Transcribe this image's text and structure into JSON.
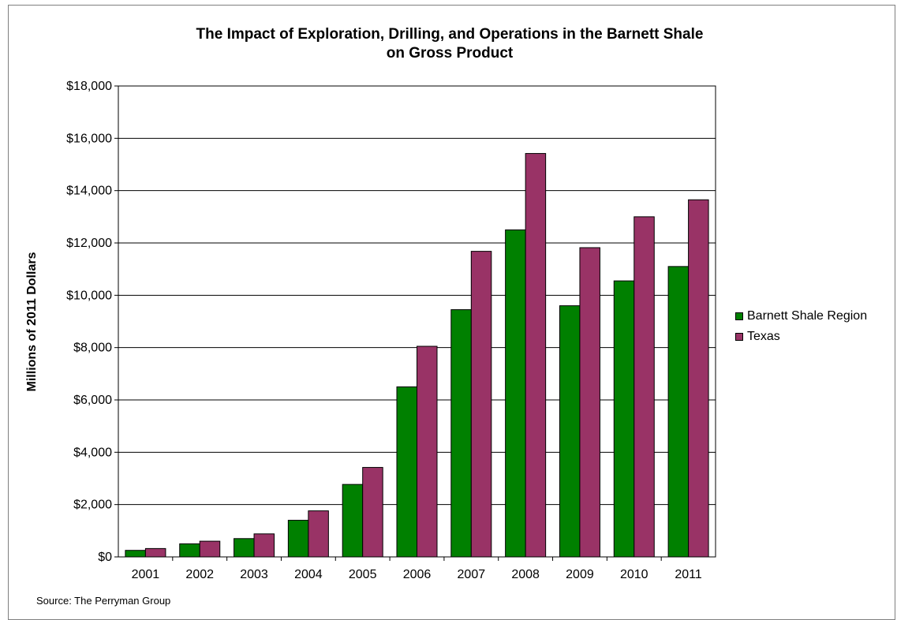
{
  "chart_data": {
    "type": "bar",
    "title_line1": "The Impact of Exploration, Drilling, and Operations in the Barnett Shale",
    "title_line2": "on Gross Product",
    "ylabel": "Millions of 2011 Dollars",
    "xlabel": "",
    "ylim": [
      0,
      18000
    ],
    "y_ticks": [
      "$0",
      "$2,000",
      "$4,000",
      "$6,000",
      "$8,000",
      "$10,000",
      "$12,000",
      "$14,000",
      "$16,000",
      "$18,000"
    ],
    "grid": true,
    "legend_position": "right",
    "categories": [
      "2001",
      "2002",
      "2003",
      "2004",
      "2005",
      "2006",
      "2007",
      "2008",
      "2009",
      "2010",
      "2011"
    ],
    "series": [
      {
        "name": "Barnett Shale Region",
        "color": "#008000",
        "values": [
          250,
          500,
          700,
          1400,
          2770,
          6500,
          9450,
          12500,
          9600,
          10550,
          11100
        ]
      },
      {
        "name": "Texas",
        "color": "#993366",
        "values": [
          320,
          600,
          880,
          1760,
          3420,
          8050,
          11680,
          15420,
          11820,
          13000,
          13650
        ]
      }
    ],
    "source": "Source: The Perryman Group"
  }
}
